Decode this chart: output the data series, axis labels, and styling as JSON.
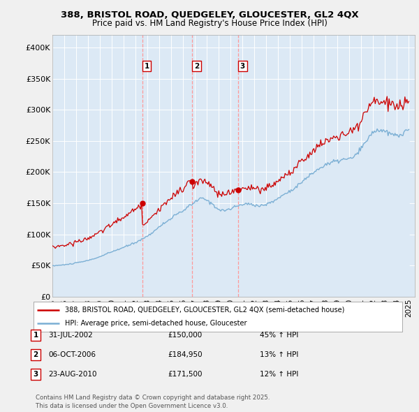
{
  "title": "388, BRISTOL ROAD, QUEDGELEY, GLOUCESTER, GL2 4QX",
  "subtitle": "Price paid vs. HM Land Registry's House Price Index (HPI)",
  "xlim_start": 1995.0,
  "xlim_end": 2025.5,
  "ylim": [
    0,
    420000
  ],
  "yticks": [
    0,
    50000,
    100000,
    150000,
    200000,
    250000,
    300000,
    350000,
    400000
  ],
  "ytick_labels": [
    "£0",
    "£50K",
    "£100K",
    "£150K",
    "£200K",
    "£250K",
    "£300K",
    "£350K",
    "£400K"
  ],
  "xtick_years": [
    1995,
    1996,
    1997,
    1998,
    1999,
    2000,
    2001,
    2002,
    2003,
    2004,
    2005,
    2006,
    2007,
    2008,
    2009,
    2010,
    2011,
    2012,
    2013,
    2014,
    2015,
    2016,
    2017,
    2018,
    2019,
    2020,
    2021,
    2022,
    2023,
    2024,
    2025
  ],
  "sale_dates": [
    2002.58,
    2006.76,
    2010.64
  ],
  "sale_prices": [
    150000,
    184950,
    171500
  ],
  "sale_labels": [
    "1",
    "2",
    "3"
  ],
  "sale_label_info": [
    {
      "num": "1",
      "date": "31-JUL-2002",
      "price": "£150,000",
      "hpi": "45% ↑ HPI"
    },
    {
      "num": "2",
      "date": "06-OCT-2006",
      "price": "£184,950",
      "hpi": "13% ↑ HPI"
    },
    {
      "num": "3",
      "date": "23-AUG-2010",
      "price": "£171,500",
      "hpi": "12% ↑ HPI"
    }
  ],
  "legend_line1": "388, BRISTOL ROAD, QUEDGELEY, GLOUCESTER, GL2 4QX (semi-detached house)",
  "legend_line2": "HPI: Average price, semi-detached house, Gloucester",
  "footer": "Contains HM Land Registry data © Crown copyright and database right 2025.\nThis data is licensed under the Open Government Licence v3.0.",
  "line_color_red": "#cc0000",
  "line_color_blue": "#7bafd4",
  "fill_color_blue": "#dce9f5",
  "background_color": "#f0f0f0",
  "plot_bg_color": "#ffffff"
}
